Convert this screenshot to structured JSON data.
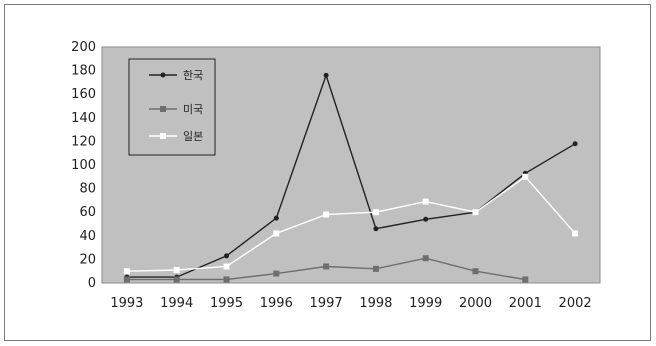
{
  "chart_data": {
    "type": "line",
    "title": "",
    "xlabel": "",
    "ylabel": "",
    "x": [
      "1993",
      "1994",
      "1995",
      "1996",
      "1997",
      "1998",
      "1999",
      "2000",
      "2001",
      "2002"
    ],
    "ylim": [
      0,
      200
    ],
    "yticks": [
      "0",
      "20",
      "40",
      "60",
      "80",
      "100",
      "120",
      "140",
      "160",
      "180",
      "200"
    ],
    "grid": false,
    "legend": "top-left",
    "plot_background": "#c0c0c0",
    "series": [
      {
        "name": "한국",
        "color": "#222222",
        "values": [
          5,
          5,
          23,
          55,
          176,
          46,
          54,
          60,
          93,
          118
        ]
      },
      {
        "name": "미국",
        "color": "#6e6e6e",
        "values": [
          3,
          3,
          3,
          8,
          14,
          12,
          21,
          10,
          3,
          null
        ]
      },
      {
        "name": "일본",
        "color": "#ffffff",
        "values": [
          10,
          11,
          14,
          42,
          58,
          60,
          69,
          60,
          90,
          42
        ]
      }
    ]
  }
}
